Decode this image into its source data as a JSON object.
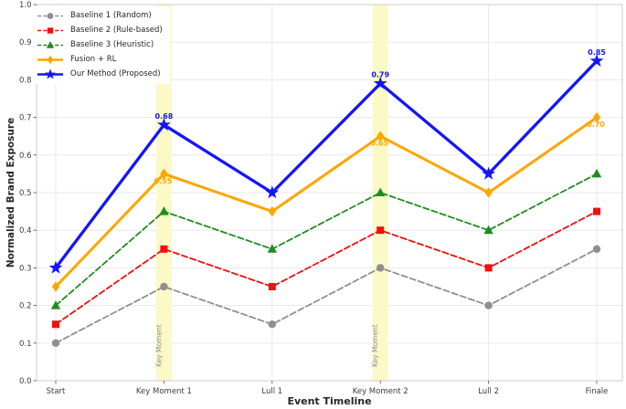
{
  "figure": {
    "background": "#ffffff"
  },
  "chart_data": {
    "type": "line",
    "title": "",
    "xlabel": "Event Timeline",
    "ylabel": "Normalized Brand Exposure",
    "categories": [
      "Start",
      "Key Moment 1",
      "Lull 1",
      "Key Moment 2",
      "Lull 2",
      "Finale"
    ],
    "ylim": [
      0.0,
      1.0
    ],
    "yticks": [
      "0.0",
      "0.1",
      "0.2",
      "0.3",
      "0.4",
      "0.5",
      "0.6",
      "0.7",
      "0.8",
      "0.9",
      "1.0"
    ],
    "grid": true,
    "legend_position": "upper-left",
    "series": [
      {
        "name": "Baseline 1 (Random)",
        "color": "#8f8f8f",
        "line_style": "dashed",
        "marker": "circle",
        "values": [
          0.1,
          0.25,
          0.15,
          0.3,
          0.2,
          0.35
        ]
      },
      {
        "name": "Baseline 2 (Rule-based)",
        "color": "#f01010",
        "line_style": "dashed",
        "marker": "square",
        "values": [
          0.15,
          0.35,
          0.25,
          0.4,
          0.3,
          0.45
        ]
      },
      {
        "name": "Baseline 3 (Heuristic)",
        "color": "#228b22",
        "line_style": "dashed",
        "marker": "triangle-up",
        "values": [
          0.2,
          0.45,
          0.35,
          0.5,
          0.4,
          0.55
        ]
      },
      {
        "name": "Fusion + RL",
        "color": "#ffa500",
        "line_style": "solid",
        "marker": "diamond",
        "values": [
          0.25,
          0.55,
          0.45,
          0.65,
          0.5,
          0.7
        ]
      },
      {
        "name": "Our Method (Proposed)",
        "color": "#1414ff",
        "line_style": "solid",
        "marker": "star",
        "values": [
          0.3,
          0.68,
          0.5,
          0.79,
          0.55,
          0.85
        ]
      }
    ],
    "point_labels": [
      {
        "series": "Our Method (Proposed)",
        "category_index": 1,
        "text": "0.68",
        "position": "above"
      },
      {
        "series": "Our Method (Proposed)",
        "category_index": 3,
        "text": "0.79",
        "position": "above"
      },
      {
        "series": "Our Method (Proposed)",
        "category_index": 5,
        "text": "0.85",
        "position": "above"
      },
      {
        "series": "Fusion + RL",
        "category_index": 1,
        "text": "0.55",
        "position": "below"
      },
      {
        "series": "Fusion + RL",
        "category_index": 3,
        "text": "0.65",
        "position": "below"
      },
      {
        "series": "Fusion + RL",
        "category_index": 5,
        "text": "0.70",
        "position": "below"
      }
    ],
    "highlight_bands": [
      {
        "category_index": 1,
        "label": "Key Moment"
      },
      {
        "category_index": 3,
        "label": "Key Moment"
      }
    ],
    "colors": {
      "band": "#fbf9c6",
      "grid": "#e7e7e7",
      "spine": "#cccccc",
      "tick": "#555555",
      "band_label_text": "#8f8f8f",
      "axis_label_text": "#262626"
    }
  }
}
